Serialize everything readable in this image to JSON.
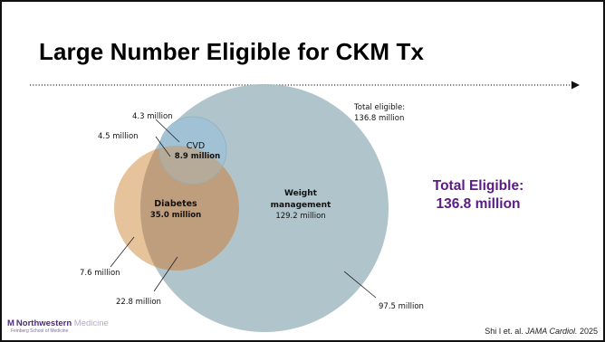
{
  "title": "Large Number Eligible for CKM Tx",
  "colors": {
    "weight_circle": "#a9bfc7",
    "diabetes_circle": "#e3b889",
    "cvd_circle": "#9fc2d6",
    "overlap_diabetes_weight": "#bf9e7e",
    "accent_purple": "#5b1b83"
  },
  "venn": {
    "total_label_line1": "Total eligible:",
    "total_label_line2": "136.8 million",
    "cvd_name": "CVD",
    "cvd_value": "8.9 million",
    "diabetes_name": "Diabetes",
    "diabetes_value": "35.0 million",
    "weight_name_line1": "Weight",
    "weight_name_line2": "management",
    "weight_value": "129.2 million",
    "callout_cvd_only": "4.3 million",
    "callout_cvd_diabetes": "4.5 million",
    "callout_diabetes_only": "7.6 million",
    "callout_diabetes_weight": "22.8 million",
    "callout_weight_only": "97.5 million"
  },
  "callout": {
    "line1": "Total Eligible:",
    "line2": "136.8 million"
  },
  "footer": {
    "logo_mark": "M",
    "logo_name": "Northwestern",
    "logo_faded": "Medicine",
    "logo_sub": "Feinberg School of Medicine",
    "citation_pre": "Shi I et. al. ",
    "citation_journal": "JAMA Cardiol.",
    "citation_year": " 2025"
  }
}
